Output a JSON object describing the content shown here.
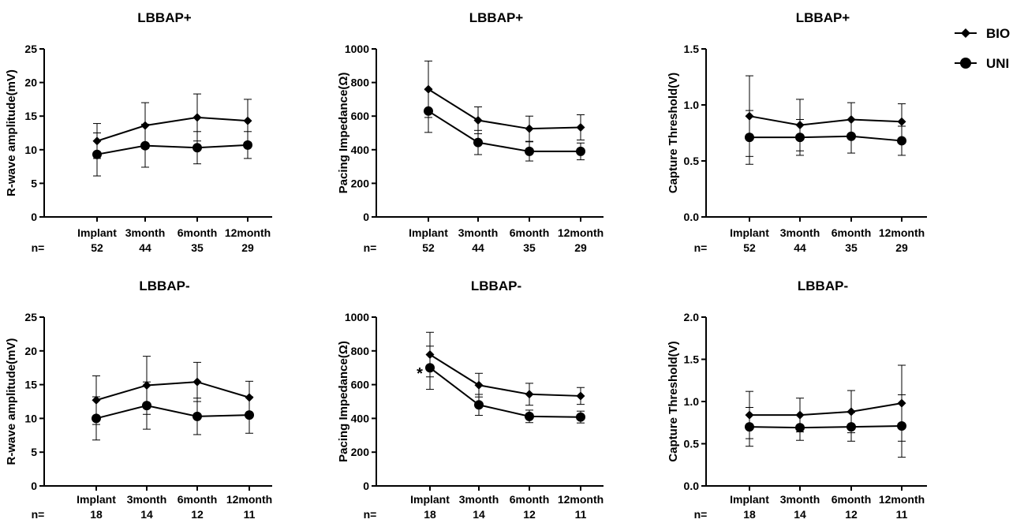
{
  "n_label": "n=",
  "categories": [
    "Implant",
    "3month",
    "6month",
    "12month"
  ],
  "legend": [
    {
      "label": "BIO",
      "marker": "diamond"
    },
    {
      "label": "UNI",
      "marker": "circle"
    }
  ],
  "chart_data": [
    {
      "type": "line",
      "title": "LBBAP+",
      "ylabel": "R-wave amplitude(mV)",
      "ylim": [
        0,
        25
      ],
      "yticks": [
        "0",
        "5",
        "10",
        "15",
        "20",
        "25"
      ],
      "categories": [
        "Implant",
        "3month",
        "6month",
        "12month"
      ],
      "n": [
        "52",
        "44",
        "35",
        "29"
      ],
      "series": [
        {
          "name": "BIO",
          "values": [
            11.3,
            13.6,
            14.8,
            14.3
          ],
          "err": [
            2.6,
            3.4,
            3.5,
            3.2
          ]
        },
        {
          "name": "UNI",
          "values": [
            9.3,
            10.6,
            10.3,
            10.7
          ],
          "err": [
            3.2,
            3.2,
            2.4,
            2.0
          ]
        }
      ]
    },
    {
      "type": "line",
      "title": "LBBAP+",
      "ylabel": "Pacing Impedance(Ω)",
      "ylim": [
        0,
        1000
      ],
      "yticks": [
        "0",
        "200",
        "400",
        "600",
        "800",
        "1000"
      ],
      "categories": [
        "Implant",
        "3month",
        "6month",
        "12month"
      ],
      "n": [
        "52",
        "44",
        "35",
        "29"
      ],
      "series": [
        {
          "name": "BIO",
          "values": [
            760,
            575,
            525,
            533
          ],
          "err": [
            168,
            80,
            75,
            75
          ]
        },
        {
          "name": "UNI",
          "values": [
            630,
            443,
            390,
            390
          ],
          "err": [
            127,
            72,
            57,
            50
          ]
        }
      ]
    },
    {
      "type": "line",
      "title": "LBBAP+",
      "ylabel": "Capture Threshold(V)",
      "ylim": [
        0,
        1.5
      ],
      "yticks": [
        "0.0",
        "0.5",
        "1.0",
        "1.5"
      ],
      "categories": [
        "Implant",
        "3month",
        "6month",
        "12month"
      ],
      "n": [
        "52",
        "44",
        "35",
        "29"
      ],
      "series": [
        {
          "name": "BIO",
          "values": [
            0.9,
            0.82,
            0.87,
            0.85
          ],
          "err": [
            0.36,
            0.23,
            0.15,
            0.16
          ]
        },
        {
          "name": "UNI",
          "values": [
            0.71,
            0.71,
            0.72,
            0.68
          ],
          "err": [
            0.24,
            0.16,
            0.15,
            0.13
          ]
        }
      ]
    },
    {
      "type": "line",
      "title": "LBBAP-",
      "ylabel": "R-wave amplitude(mV)",
      "ylim": [
        0,
        25
      ],
      "yticks": [
        "0",
        "5",
        "10",
        "15",
        "20",
        "25"
      ],
      "categories": [
        "Implant",
        "3month",
        "6month",
        "12month"
      ],
      "n": [
        "18",
        "14",
        "12",
        "11"
      ],
      "series": [
        {
          "name": "BIO",
          "values": [
            12.7,
            14.9,
            15.4,
            13.1
          ],
          "err": [
            3.6,
            4.3,
            2.9,
            2.4
          ]
        },
        {
          "name": "UNI",
          "values": [
            10.0,
            11.9,
            10.3,
            10.5
          ],
          "err": [
            3.2,
            3.5,
            2.7,
            2.7
          ]
        }
      ]
    },
    {
      "type": "line",
      "title": "LBBAP-",
      "ylabel": "Pacing Impedance(Ω)",
      "ylim": [
        0,
        1000
      ],
      "yticks": [
        "0",
        "200",
        "400",
        "600",
        "800",
        "1000"
      ],
      "categories": [
        "Implant",
        "3month",
        "6month",
        "12month"
      ],
      "n": [
        "18",
        "14",
        "12",
        "11"
      ],
      "annotations": [
        {
          "text": "*",
          "category": "Implant"
        }
      ],
      "series": [
        {
          "name": "BIO",
          "values": [
            778,
            597,
            543,
            533
          ],
          "err": [
            132,
            70,
            65,
            50
          ]
        },
        {
          "name": "UNI",
          "values": [
            700,
            480,
            412,
            408
          ],
          "err": [
            128,
            62,
            37,
            35
          ]
        }
      ]
    },
    {
      "type": "line",
      "title": "LBBAP-",
      "ylabel": "Capture Threshold(V)",
      "ylim": [
        0,
        2.0
      ],
      "yticks": [
        "0.0",
        "0.5",
        "1.0",
        "1.5",
        "2.0"
      ],
      "categories": [
        "Implant",
        "3month",
        "6month",
        "12month"
      ],
      "n": [
        "18",
        "14",
        "12",
        "11"
      ],
      "series": [
        {
          "name": "BIO",
          "values": [
            0.84,
            0.84,
            0.88,
            0.98
          ],
          "err": [
            0.28,
            0.2,
            0.25,
            0.45
          ]
        },
        {
          "name": "UNI",
          "values": [
            0.7,
            0.69,
            0.7,
            0.71
          ],
          "err": [
            0.23,
            0.15,
            0.17,
            0.37
          ]
        }
      ]
    }
  ]
}
